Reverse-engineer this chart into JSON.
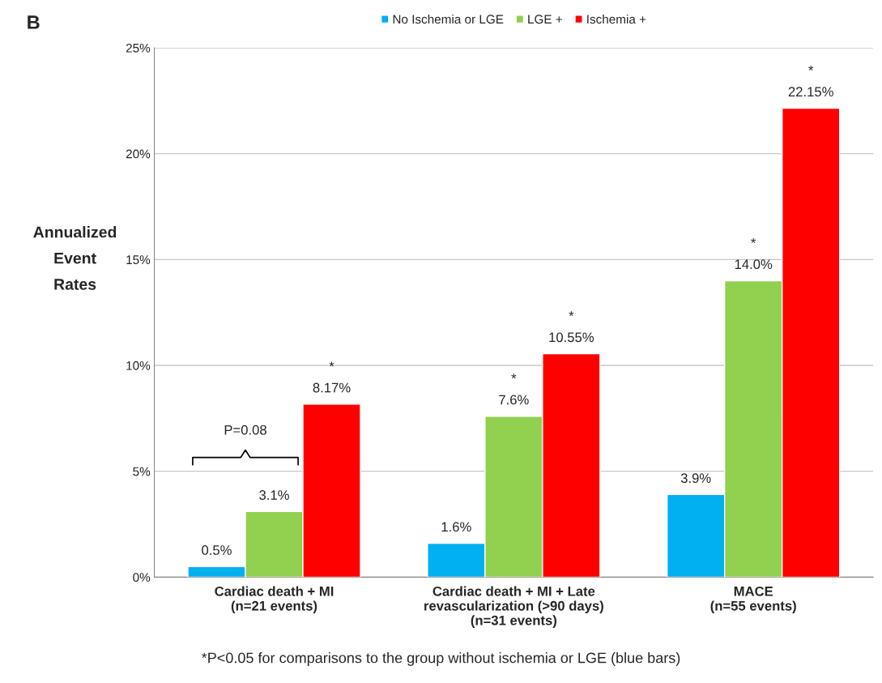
{
  "chart_data": {
    "type": "bar",
    "categories": [
      "Cardiac death + MI\n(n=21 events)",
      "Cardiac death + MI + Late\nrevascularization (>90 days)\n(n=31 events)",
      "MACE\n(n=55 events)"
    ],
    "series": [
      {
        "name": "No Ischemia or LGE",
        "color": "#00b0f0",
        "values": [
          0.5,
          1.6,
          3.9
        ],
        "value_labels": [
          "0.5%",
          "1.6%",
          "3.9%"
        ]
      },
      {
        "name": "LGE +",
        "color": "#92d050",
        "values": [
          3.1,
          7.6,
          14.0
        ],
        "value_labels": [
          "3.1%",
          "*\n7.6%",
          "*\n14.0%"
        ]
      },
      {
        "name": "Ischemia +",
        "color": "#ff0000",
        "values": [
          8.17,
          10.55,
          22.15
        ],
        "value_labels": [
          "*\n8.17%",
          "*\n10.55%",
          "*\n22.15%"
        ]
      }
    ],
    "ylabel": "Annualized\nEvent\nRates",
    "ylim": [
      0,
      25
    ],
    "yticks": [
      {
        "value": 0,
        "label": "0%"
      },
      {
        "value": 5,
        "label": "5%"
      },
      {
        "value": 10,
        "label": "10%"
      },
      {
        "value": 15,
        "label": "15%"
      },
      {
        "value": 20,
        "label": "20%"
      },
      {
        "value": 25,
        "label": "25%"
      }
    ],
    "grid": "y",
    "legend": "top",
    "annotations": [
      "B",
      "P=0.08",
      "*P<0.05 for comparisons to the group without ischemia or LGE (blue bars)"
    ]
  }
}
